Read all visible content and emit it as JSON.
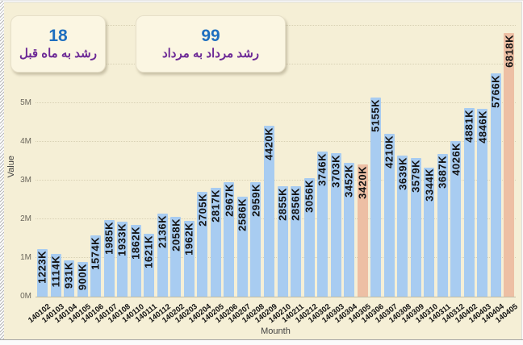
{
  "cards": [
    {
      "value": "18",
      "label": "رشد به ماه قبل"
    },
    {
      "value": "99",
      "label": "رشد مرداد به مرداد"
    }
  ],
  "chart_data": {
    "type": "bar",
    "title": "",
    "xlabel": "Mounth",
    "ylabel": "Value",
    "ylim": [
      0,
      7000000
    ],
    "grid": "horizontal-dotted",
    "legend": "none",
    "ytick_labels": [
      "0M",
      "1M",
      "2M",
      "3M",
      "4M",
      "5M"
    ],
    "categories": [
      "140102",
      "140103",
      "140104",
      "140105",
      "140106",
      "140107",
      "140108",
      "140110",
      "140111",
      "140112",
      "140202",
      "140203",
      "140204",
      "140205",
      "140206",
      "140207",
      "140208",
      "140209",
      "140210",
      "140211",
      "140212",
      "140302",
      "140303",
      "140304",
      "140305",
      "140306",
      "140307",
      "140308",
      "140309",
      "140310",
      "140311",
      "140312",
      "140402",
      "140403",
      "140404",
      "140405"
    ],
    "values_thousands": [
      1223,
      1114,
      931,
      900,
      1574,
      1985,
      1933,
      1862,
      1621,
      2136,
      2058,
      1962,
      2705,
      2817,
      2967,
      2586,
      2959,
      4420,
      2855,
      2856,
      3056,
      3746,
      3703,
      3452,
      3420,
      5155,
      4210,
      3639,
      3579,
      3344,
      3687,
      4026,
      4881,
      4846,
      5766,
      6818
    ],
    "bar_labels": [
      "1223K",
      "1114K",
      "931K",
      "900K",
      "1574K",
      "1985K",
      "1933K",
      "1862K",
      "1621K",
      "2136K",
      "2058K",
      "1962K",
      "2705K",
      "2817K",
      "2967K",
      "2586K",
      "2959K",
      "4420K",
      "2855K",
      "2856K",
      "3056K",
      "3746K",
      "3703K",
      "3452K",
      "3420K",
      "5155K",
      "4210K",
      "3639K",
      "3579K",
      "3344K",
      "3687K",
      "4026K",
      "4881K",
      "4846K",
      "5766K",
      "6818K"
    ],
    "highlighted_indices": [
      24,
      35
    ],
    "colors": {
      "bar": "#a8ccf1",
      "bar_highlight": "#edbfa4",
      "panel_background": "#f5efd6",
      "card_background": "#fbf6e2",
      "card_value_text": "#1e6fbf",
      "card_label_text": "#6d2a96",
      "bar_label_text": "#141414"
    }
  }
}
